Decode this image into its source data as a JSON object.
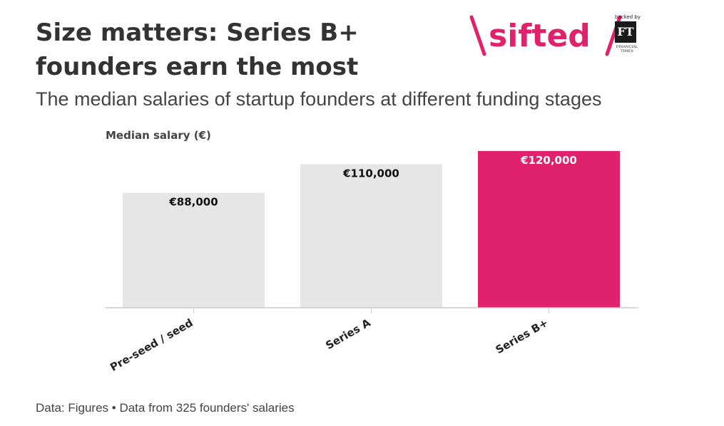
{
  "header": {
    "title": "Size matters: Series B+ founders earn the most",
    "subtitle": "The median salaries of startup founders at different funding stages"
  },
  "logo": {
    "brand": "sifted",
    "backed_by": "backed by",
    "ft_mark": "FT",
    "ft_name": "FINANCIAL TIMES"
  },
  "footer": {
    "source": "Data: Figures • Data from 325 founders' salaries"
  },
  "colors": {
    "default_bar": "#e6e6e6",
    "highlight_bar": "#e0216c",
    "brand_pink": "#e0216c",
    "text": "#333333"
  },
  "chart_data": {
    "type": "bar",
    "categories": [
      "Pre-seed / seed",
      "Series A",
      "Series B+"
    ],
    "values": [
      88000,
      110000,
      120000
    ],
    "value_labels": [
      "€88,000",
      "€110,000",
      "€120,000"
    ],
    "highlight_index": 2,
    "ylabel": "Median salary (€)",
    "xlabel": "",
    "ylim": [
      0,
      120000
    ],
    "grid": false,
    "legend": "none"
  }
}
